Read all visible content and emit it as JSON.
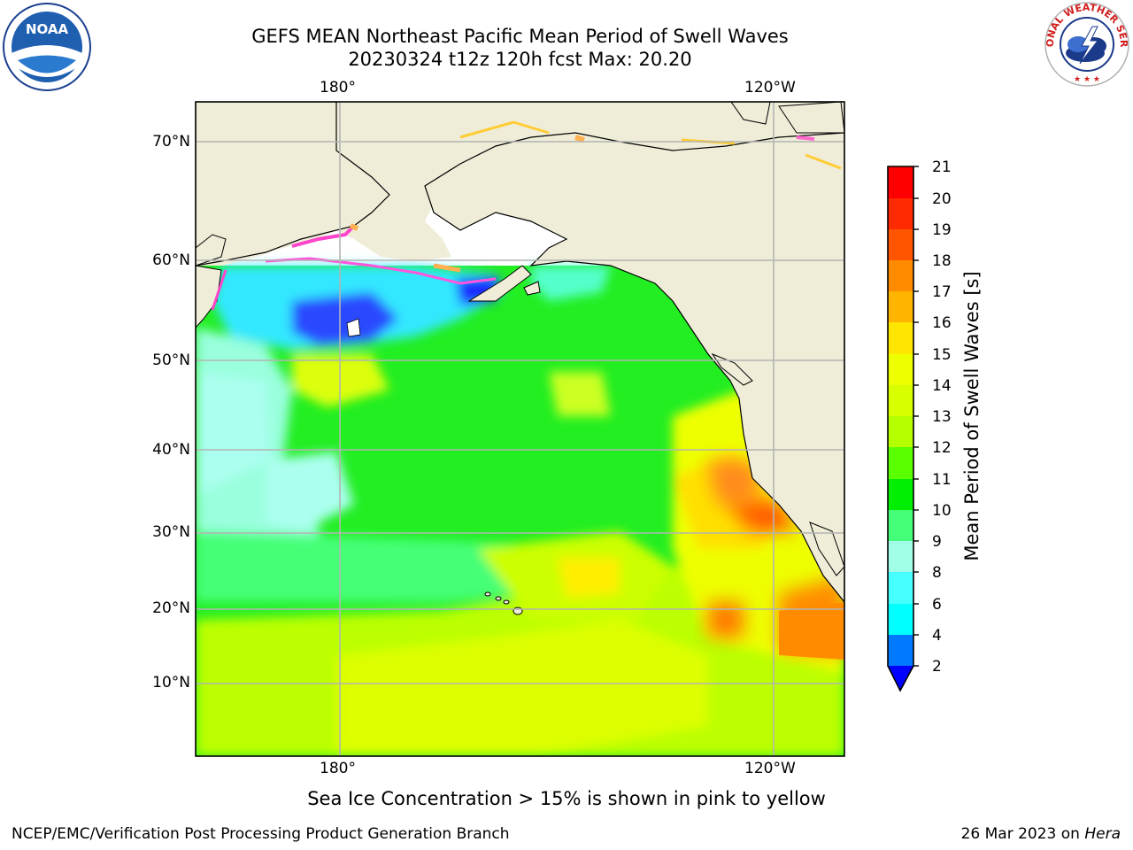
{
  "header": {
    "title_line1": "GEFS MEAN Northeast Pacific Mean Period of Swell Waves",
    "title_line2": "20230324 t12z 120h fcst   Max: 20.20",
    "noaa_logo_text": "NOAA",
    "nws_logo_text": "NATIONAL WEATHER SERVICE"
  },
  "map": {
    "top_lon_labels": [
      "180°",
      "120°W"
    ],
    "bottom_lon_labels": [
      "180°",
      "120°W"
    ],
    "lat_labels": [
      "70°N",
      "60°N",
      "50°N",
      "40°N",
      "30°N",
      "20°N",
      "10°N"
    ]
  },
  "colorbar": {
    "label": "Mean Period of Swell Waves [s]",
    "ticks": [
      "21",
      "20",
      "19",
      "18",
      "17",
      "16",
      "15",
      "14",
      "13",
      "12",
      "11",
      "10",
      "9",
      "8",
      "6",
      "4",
      "2"
    ],
    "colors": {
      "land": "#efedd8",
      "red": "#ff0000",
      "orange": "#ff8c00",
      "yellow": "#ffff00",
      "green": "#00ee00",
      "cyan": "#00ffff",
      "blue": "#0000ff"
    }
  },
  "notes": {
    "ice": "Sea Ice Concentration > 15% is shown in pink to yellow"
  },
  "footer": {
    "left": "NCEP/EMC/Verification Post Processing Product Generation Branch",
    "date": "26 Mar 2023 on ",
    "host": "Hera"
  }
}
